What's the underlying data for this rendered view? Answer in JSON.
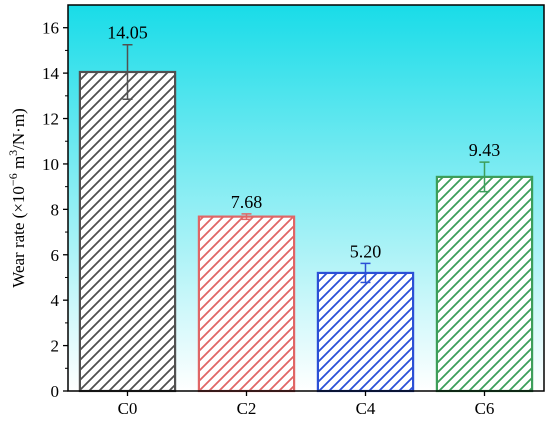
{
  "chart_data": {
    "type": "bar",
    "categories": [
      "C0",
      "C2",
      "C4",
      "C6"
    ],
    "values": [
      14.05,
      7.68,
      5.2,
      9.43
    ],
    "value_labels": [
      "14.05",
      "7.68",
      "5.20",
      "9.43"
    ],
    "errors": [
      1.2,
      0.12,
      0.42,
      0.65
    ],
    "colors": [
      "#505050",
      "#e06666",
      "#2b50d6",
      "#3c9e5a"
    ],
    "ylabel": "Wear rate (×10⁻⁶ m³/N·m)",
    "ylabel_parts": {
      "prefix": "Wear rate (×10",
      "exp1": "−6",
      "middle": " m",
      "exp2": "3",
      "suffix": "/N·m)"
    },
    "xlabel": "",
    "ylim": [
      0,
      17
    ],
    "yticks": [
      0,
      2,
      4,
      6,
      8,
      10,
      12,
      14,
      16
    ],
    "ytick_labels": [
      "0",
      "2",
      "4",
      "6",
      "8",
      "10",
      "12",
      "14",
      "16"
    ],
    "fill_style": "diagonal hatch",
    "background": {
      "type": "vertical-gradient",
      "top": "#19dce8",
      "bottom": "#ffffff"
    },
    "grid": false,
    "legend": "none"
  }
}
